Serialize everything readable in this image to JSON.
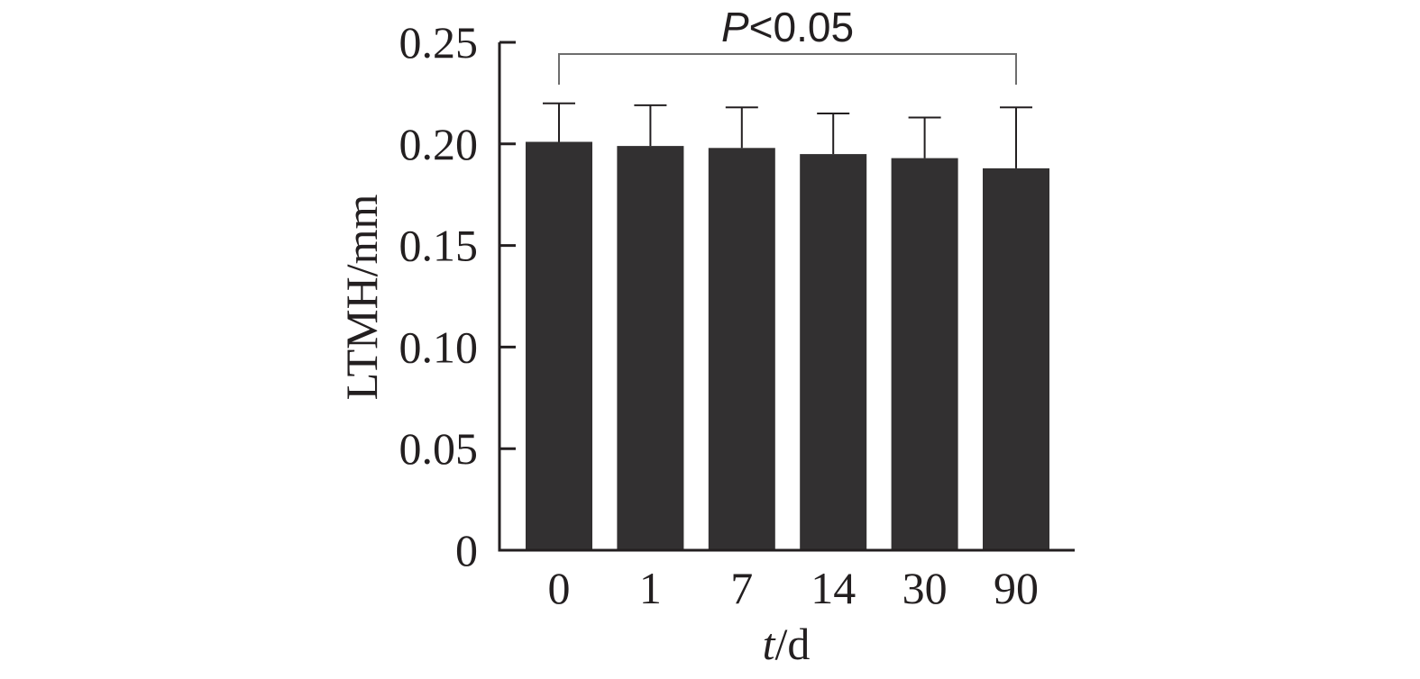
{
  "chart_data": {
    "type": "bar",
    "categories": [
      "0",
      "1",
      "7",
      "14",
      "30",
      "90"
    ],
    "values": [
      0.201,
      0.199,
      0.198,
      0.195,
      0.193,
      0.188
    ],
    "errors": [
      0.019,
      0.02,
      0.02,
      0.02,
      0.02,
      0.03
    ],
    "title": "",
    "xlabel": {
      "var": "t",
      "unit": "/d"
    },
    "ylabel": "LTMH/mm",
    "ylim": [
      0,
      0.25
    ],
    "yticks": [
      "0",
      "0.05",
      "0.10",
      "0.15",
      "0.20",
      "0.25"
    ],
    "ytick_values": [
      0,
      0.05,
      0.1,
      0.15,
      0.2,
      0.25
    ],
    "grid": false,
    "legend": "none",
    "annotation": {
      "from_category": "0",
      "to_category": "90",
      "italic": "P",
      "rest": "<0.05"
    },
    "colors": {
      "bar": "#323031",
      "axis": "#231f20",
      "bracket": "#6d6d6d"
    }
  }
}
